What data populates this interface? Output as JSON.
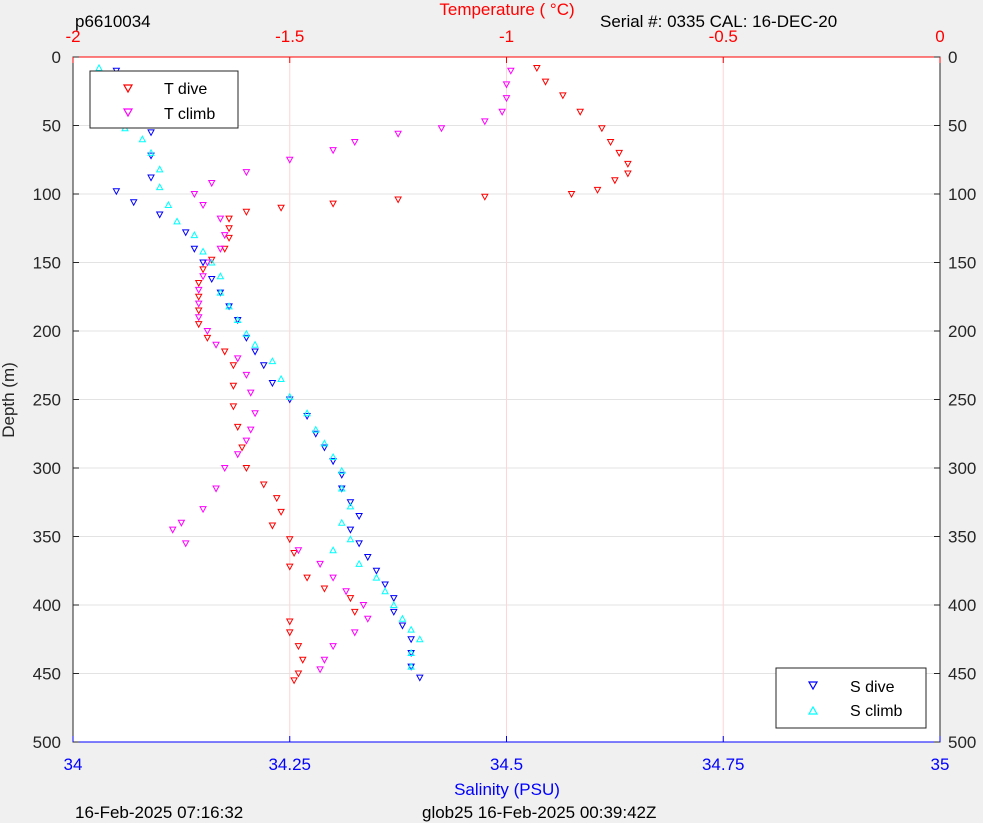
{
  "header": {
    "profile_id": "p6610034",
    "serial": "Serial #: 0335  CAL: 16-DEC-20"
  },
  "footer": {
    "left_timestamp": "16-Feb-2025 07:16:32",
    "mission": "glob25 16-Feb-2025 00:39:42Z"
  },
  "colors": {
    "t_dive": "#ff0000",
    "t_climb": "#ff00ff",
    "s_dive": "#0000ff",
    "s_climb": "#00ffff",
    "temp_axis": "#ff0000",
    "sal_axis": "#0000ff"
  },
  "chart_data": {
    "type": "scatter",
    "ylabel": "Depth (m)",
    "ylim": [
      0,
      500
    ],
    "y_reversed": true,
    "y_ticks": [
      "0",
      "50",
      "100",
      "150",
      "200",
      "250",
      "300",
      "350",
      "400",
      "450",
      "500"
    ],
    "temperature_axis": {
      "label": "Temperature (    °C)",
      "position": "top",
      "range": [
        -2,
        0
      ],
      "ticks": [
        "-2",
        "-1.5",
        "-1",
        "-0.5",
        "0"
      ]
    },
    "salinity_axis": {
      "label": "Salinity (PSU)",
      "position": "bottom",
      "range": [
        34,
        35
      ],
      "ticks": [
        "34",
        "34.25",
        "34.5",
        "34.75",
        "35"
      ]
    },
    "grid": true,
    "legend_top": {
      "placement": "top-left",
      "entries": [
        "T dive",
        "T climb"
      ]
    },
    "legend_bottom": {
      "placement": "bottom-right",
      "entries": [
        "S dive",
        "S climb"
      ]
    },
    "series": [
      {
        "name": "T dive",
        "axis": "temperature",
        "marker": "triangle-down",
        "points": [
          [
            -0.93,
            8
          ],
          [
            -0.91,
            18
          ],
          [
            -0.87,
            28
          ],
          [
            -0.83,
            40
          ],
          [
            -0.78,
            52
          ],
          [
            -0.76,
            62
          ],
          [
            -0.74,
            70
          ],
          [
            -0.72,
            78
          ],
          [
            -0.72,
            85
          ],
          [
            -0.75,
            90
          ],
          [
            -0.79,
            97
          ],
          [
            -0.85,
            100
          ],
          [
            -1.05,
            102
          ],
          [
            -1.25,
            104
          ],
          [
            -1.4,
            107
          ],
          [
            -1.52,
            110
          ],
          [
            -1.6,
            113
          ],
          [
            -1.64,
            118
          ],
          [
            -1.64,
            125
          ],
          [
            -1.64,
            132
          ],
          [
            -1.65,
            140
          ],
          [
            -1.68,
            148
          ],
          [
            -1.7,
            155
          ],
          [
            -1.71,
            165
          ],
          [
            -1.71,
            175
          ],
          [
            -1.71,
            185
          ],
          [
            -1.71,
            195
          ],
          [
            -1.69,
            205
          ],
          [
            -1.65,
            215
          ],
          [
            -1.63,
            225
          ],
          [
            -1.63,
            240
          ],
          [
            -1.63,
            255
          ],
          [
            -1.62,
            270
          ],
          [
            -1.61,
            285
          ],
          [
            -1.6,
            300
          ],
          [
            -1.56,
            312
          ],
          [
            -1.53,
            322
          ],
          [
            -1.52,
            332
          ],
          [
            -1.54,
            342
          ],
          [
            -1.5,
            352
          ],
          [
            -1.49,
            362
          ],
          [
            -1.5,
            372
          ],
          [
            -1.46,
            380
          ],
          [
            -1.42,
            388
          ],
          [
            -1.36,
            395
          ],
          [
            -1.35,
            405
          ],
          [
            -1.5,
            412
          ],
          [
            -1.5,
            420
          ],
          [
            -1.48,
            430
          ],
          [
            -1.47,
            440
          ],
          [
            -1.48,
            450
          ],
          [
            -1.49,
            455
          ]
        ]
      },
      {
        "name": "T climb",
        "axis": "temperature",
        "marker": "triangle-down",
        "points": [
          [
            -0.99,
            10
          ],
          [
            -1.0,
            20
          ],
          [
            -1.0,
            30
          ],
          [
            -1.01,
            40
          ],
          [
            -1.05,
            47
          ],
          [
            -1.15,
            52
          ],
          [
            -1.25,
            56
          ],
          [
            -1.35,
            62
          ],
          [
            -1.4,
            68
          ],
          [
            -1.5,
            75
          ],
          [
            -1.6,
            84
          ],
          [
            -1.68,
            92
          ],
          [
            -1.72,
            100
          ],
          [
            -1.7,
            108
          ],
          [
            -1.66,
            118
          ],
          [
            -1.65,
            130
          ],
          [
            -1.66,
            140
          ],
          [
            -1.69,
            150
          ],
          [
            -1.7,
            160
          ],
          [
            -1.71,
            170
          ],
          [
            -1.71,
            180
          ],
          [
            -1.71,
            190
          ],
          [
            -1.69,
            200
          ],
          [
            -1.67,
            210
          ],
          [
            -1.62,
            220
          ],
          [
            -1.6,
            232
          ],
          [
            -1.59,
            245
          ],
          [
            -1.58,
            260
          ],
          [
            -1.59,
            272
          ],
          [
            -1.6,
            280
          ],
          [
            -1.62,
            290
          ],
          [
            -1.65,
            300
          ],
          [
            -1.67,
            315
          ],
          [
            -1.7,
            330
          ],
          [
            -1.75,
            340
          ],
          [
            -1.77,
            345
          ],
          [
            -1.74,
            355
          ],
          [
            -1.48,
            360
          ],
          [
            -1.43,
            370
          ],
          [
            -1.4,
            380
          ],
          [
            -1.37,
            390
          ],
          [
            -1.33,
            400
          ],
          [
            -1.32,
            410
          ],
          [
            -1.35,
            420
          ],
          [
            -1.4,
            430
          ],
          [
            -1.42,
            440
          ],
          [
            -1.43,
            447
          ]
        ]
      },
      {
        "name": "S dive",
        "axis": "salinity",
        "marker": "triangle-down",
        "points": [
          [
            34.05,
            10
          ],
          [
            34.06,
            20
          ],
          [
            34.07,
            28
          ],
          [
            34.08,
            40
          ],
          [
            34.09,
            55
          ],
          [
            34.09,
            72
          ],
          [
            34.09,
            88
          ],
          [
            34.05,
            98
          ],
          [
            34.07,
            106
          ],
          [
            34.1,
            115
          ],
          [
            34.13,
            128
          ],
          [
            34.14,
            140
          ],
          [
            34.15,
            150
          ],
          [
            34.16,
            162
          ],
          [
            34.17,
            172
          ],
          [
            34.18,
            182
          ],
          [
            34.19,
            192
          ],
          [
            34.2,
            205
          ],
          [
            34.21,
            215
          ],
          [
            34.22,
            225
          ],
          [
            34.23,
            238
          ],
          [
            34.25,
            250
          ],
          [
            34.27,
            262
          ],
          [
            34.28,
            275
          ],
          [
            34.29,
            285
          ],
          [
            34.3,
            295
          ],
          [
            34.31,
            305
          ],
          [
            34.31,
            315
          ],
          [
            34.32,
            325
          ],
          [
            34.33,
            335
          ],
          [
            34.32,
            345
          ],
          [
            34.33,
            355
          ],
          [
            34.34,
            365
          ],
          [
            34.35,
            375
          ],
          [
            34.36,
            385
          ],
          [
            34.37,
            395
          ],
          [
            34.37,
            405
          ],
          [
            34.38,
            415
          ],
          [
            34.39,
            425
          ],
          [
            34.39,
            435
          ],
          [
            34.39,
            445
          ],
          [
            34.4,
            453
          ]
        ]
      },
      {
        "name": "S climb",
        "axis": "salinity",
        "marker": "triangle-up",
        "points": [
          [
            34.03,
            8
          ],
          [
            34.04,
            18
          ],
          [
            34.05,
            28
          ],
          [
            34.05,
            40
          ],
          [
            34.06,
            52
          ],
          [
            34.08,
            60
          ],
          [
            34.09,
            70
          ],
          [
            34.1,
            82
          ],
          [
            34.1,
            95
          ],
          [
            34.11,
            108
          ],
          [
            34.12,
            120
          ],
          [
            34.14,
            130
          ],
          [
            34.15,
            142
          ],
          [
            34.16,
            150
          ],
          [
            34.17,
            160
          ],
          [
            34.17,
            172
          ],
          [
            34.18,
            182
          ],
          [
            34.19,
            192
          ],
          [
            34.2,
            202
          ],
          [
            34.21,
            210
          ],
          [
            34.23,
            222
          ],
          [
            34.24,
            235
          ],
          [
            34.25,
            248
          ],
          [
            34.27,
            260
          ],
          [
            34.28,
            272
          ],
          [
            34.29,
            282
          ],
          [
            34.3,
            292
          ],
          [
            34.31,
            302
          ],
          [
            34.31,
            315
          ],
          [
            34.32,
            328
          ],
          [
            34.31,
            340
          ],
          [
            34.32,
            352
          ],
          [
            34.3,
            360
          ],
          [
            34.33,
            370
          ],
          [
            34.35,
            380
          ],
          [
            34.36,
            390
          ],
          [
            34.37,
            400
          ],
          [
            34.38,
            410
          ],
          [
            34.39,
            418
          ],
          [
            34.4,
            425
          ],
          [
            34.39,
            435
          ],
          [
            34.39,
            445
          ]
        ]
      }
    ]
  }
}
